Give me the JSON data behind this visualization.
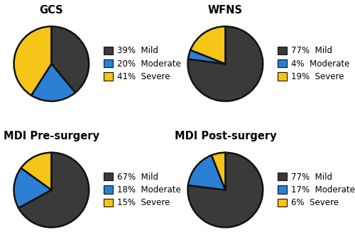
{
  "charts": [
    {
      "title": "GCS",
      "values": [
        39,
        20,
        41
      ],
      "labels": [
        "Mild",
        "Moderate",
        "Severe"
      ],
      "pcts": [
        "39%",
        "20%",
        "41%"
      ],
      "startangle": 90
    },
    {
      "title": "WFNS",
      "values": [
        77,
        4,
        19
      ],
      "labels": [
        "Mild",
        "Moderate",
        "Severe"
      ],
      "pcts": [
        "77%",
        "4%",
        "19%"
      ],
      "startangle": 90
    },
    {
      "title": "MDI Pre-surgery",
      "values": [
        67,
        18,
        15
      ],
      "labels": [
        "Mild",
        "Moderate",
        "Severe"
      ],
      "pcts": [
        "67%",
        "18%",
        "15%"
      ],
      "startangle": 90
    },
    {
      "title": "MDI Post-surgery",
      "values": [
        77,
        17,
        6
      ],
      "labels": [
        "Mild",
        "Moderate",
        "Severe"
      ],
      "pcts": [
        "77%",
        "17%",
        "6%"
      ],
      "startangle": 90
    }
  ],
  "colors": [
    "#3a3a3a",
    "#2b7fd4",
    "#f5c518"
  ],
  "edge_color": "#111111",
  "edge_width": 1.8,
  "background_color": "#ffffff",
  "title_fontsize": 10.5,
  "title_fontweight": "bold",
  "legend_fontsize": 8.5
}
